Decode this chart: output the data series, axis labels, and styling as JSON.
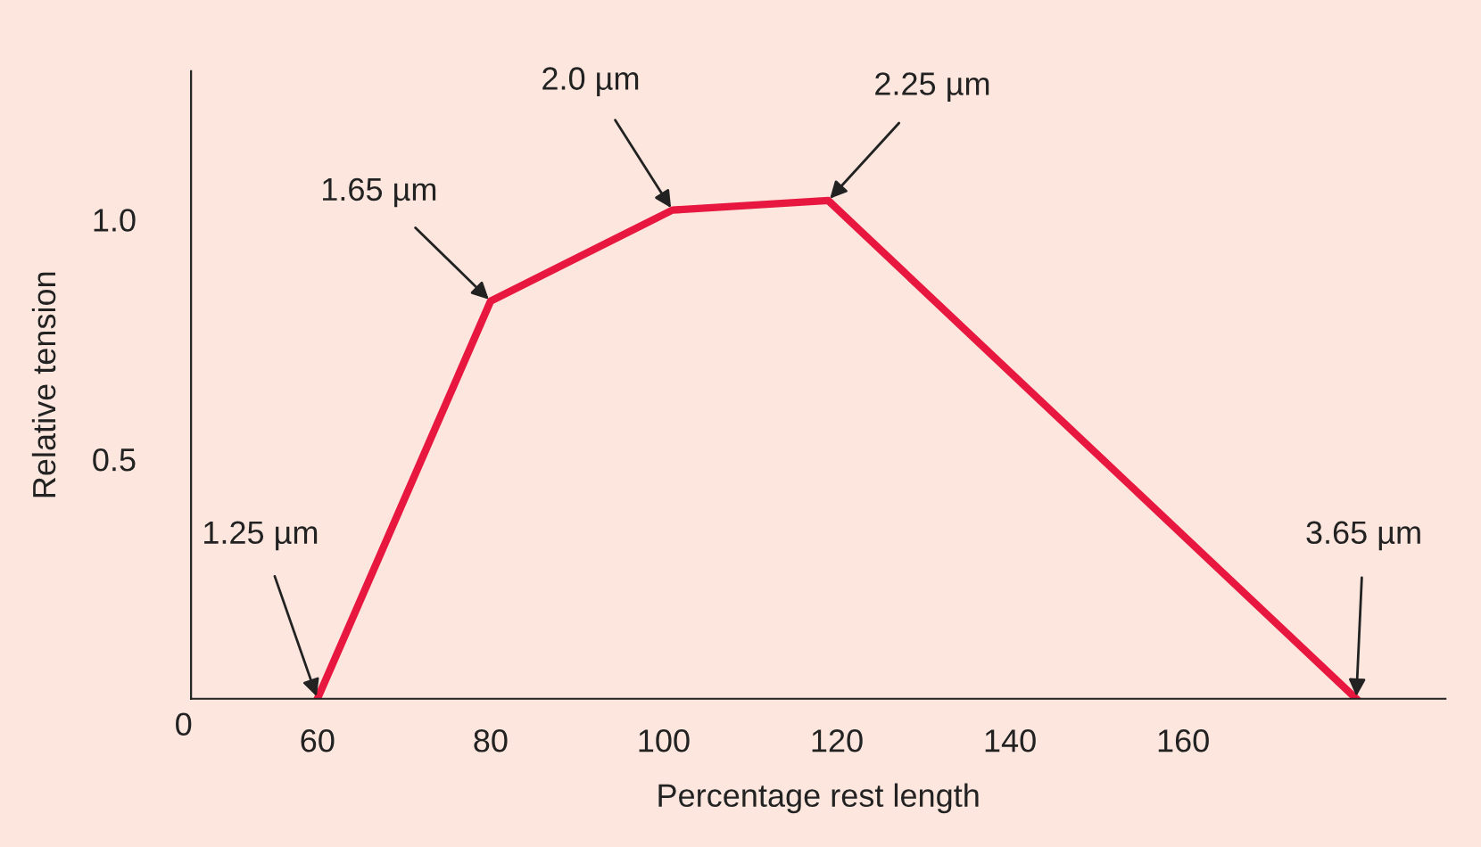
{
  "chart_data": {
    "type": "line",
    "xlabel": "Percentage rest length",
    "ylabel": "Relative tension",
    "x": [
      60,
      80,
      101,
      119,
      180
    ],
    "series": [
      {
        "color": "#e8173f",
        "values": [
          0,
          0.83,
          1.02,
          1.04,
          0
        ]
      }
    ],
    "xlim": [
      45.4,
      190.3
    ],
    "ylim": [
      0,
      1.31
    ],
    "xticks": [
      60,
      80,
      100,
      120,
      140,
      160
    ],
    "yticks": [
      {
        "value": 0.5,
        "label": "0.5"
      },
      {
        "value": 1.0,
        "label": "1.0"
      }
    ],
    "annotations": [
      {
        "text": "1.25 µm",
        "x": 60,
        "y": 0
      },
      {
        "text": "1.65 µm",
        "x": 80,
        "y": 0.83
      },
      {
        "text": "2.0 µm",
        "x": 101,
        "y": 1.02
      },
      {
        "text": "2.25 µm",
        "x": 119,
        "y": 1.04
      },
      {
        "text": "3.65 µm",
        "x": 180,
        "y": 0
      },
      "0"
    ],
    "grid": false,
    "marker": "none",
    "line_style": "solid"
  }
}
